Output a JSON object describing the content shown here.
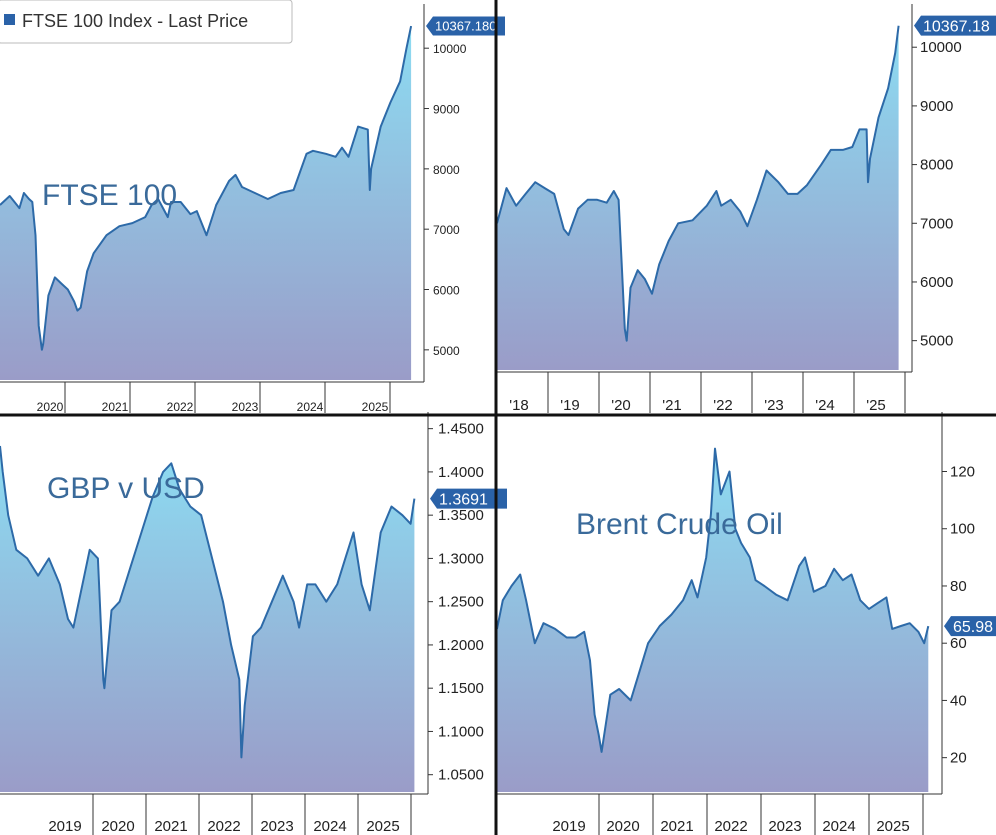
{
  "legend": {
    "label": "FTSE 100 Index - Last Price",
    "swatch_color": "#2a62a8"
  },
  "style": {
    "line_color": "#2d6aa8",
    "fill_top": "#8cdcf2",
    "fill_bottom": "#9a9cc8",
    "badge_color": "#2a62a8",
    "divider_color": "#111111"
  },
  "chart_data": [
    {
      "id": "ftse-5y",
      "type": "area",
      "overlay_title": "FTSE 100",
      "title": "",
      "last_value_label": "10367.180",
      "ylim": [
        4500,
        10600
      ],
      "yticks": [
        5000,
        6000,
        7000,
        8000,
        9000,
        10000
      ],
      "ytick_labels": [
        "5000",
        "6000",
        "7000",
        "8000",
        "9000",
        "10000"
      ],
      "xlim": [
        2019.55,
        2025.95
      ],
      "xtick_labels": [
        "2020",
        "2021",
        "2022",
        "2023",
        "2024",
        "2025"
      ],
      "series": [
        {
          "x": [
            2019.55,
            2019.7,
            2019.85,
            2019.92,
            2020.0,
            2020.05,
            2020.1,
            2020.15,
            2020.2,
            2020.22,
            2020.3,
            2020.4,
            2020.5,
            2020.6,
            2020.7,
            2020.75,
            2020.8,
            2020.9,
            2021.0,
            2021.2,
            2021.4,
            2021.6,
            2021.8,
            2021.9,
            2022.0,
            2022.15,
            2022.2,
            2022.35,
            2022.5,
            2022.6,
            2022.75,
            2022.9,
            2023.1,
            2023.2,
            2023.3,
            2023.5,
            2023.7,
            2023.8,
            2023.9,
            2024.1,
            2024.3,
            2024.4,
            2024.6,
            2024.75,
            2024.85,
            2024.95,
            2025.1,
            2025.25,
            2025.28,
            2025.3,
            2025.45,
            2025.6,
            2025.75,
            2025.85,
            2025.92
          ],
          "y": [
            7400,
            7550,
            7350,
            7600,
            7500,
            7450,
            6900,
            5400,
            5000,
            5100,
            5900,
            6200,
            6100,
            6000,
            5800,
            5650,
            5700,
            6300,
            6600,
            6900,
            7050,
            7100,
            7200,
            7400,
            7500,
            7200,
            7450,
            7450,
            7250,
            7300,
            6900,
            7400,
            7800,
            7900,
            7700,
            7600,
            7500,
            7550,
            7600,
            7650,
            8250,
            8300,
            8250,
            8200,
            8350,
            8200,
            8700,
            8650,
            7650,
            8000,
            8700,
            9100,
            9450,
            10000,
            10367
          ]
        }
      ]
    },
    {
      "id": "ftse-8y",
      "type": "area",
      "title": "",
      "last_value_label": "10367.18",
      "ylim": [
        4500,
        10600
      ],
      "yticks": [
        5000,
        6000,
        7000,
        8000,
        9000,
        10000
      ],
      "ytick_labels": [
        "5000",
        "6000",
        "7000",
        "8000",
        "9000",
        "10000"
      ],
      "xlim": [
        2017.5,
        2025.95
      ],
      "xtick_labels": [
        "'18",
        "'19",
        "'20",
        "'21",
        "'22",
        "'23",
        "'24",
        "'25"
      ],
      "series": [
        {
          "x": [
            2017.5,
            2017.7,
            2017.9,
            2018.1,
            2018.3,
            2018.5,
            2018.7,
            2018.9,
            2019.0,
            2019.2,
            2019.4,
            2019.6,
            2019.8,
            2019.95,
            2020.05,
            2020.12,
            2020.18,
            2020.22,
            2020.3,
            2020.45,
            2020.6,
            2020.75,
            2020.9,
            2021.1,
            2021.3,
            2021.6,
            2021.9,
            2022.1,
            2022.2,
            2022.4,
            2022.6,
            2022.75,
            2022.95,
            2023.15,
            2023.4,
            2023.6,
            2023.8,
            2024.0,
            2024.3,
            2024.5,
            2024.75,
            2024.95,
            2025.1,
            2025.25,
            2025.28,
            2025.32,
            2025.5,
            2025.7,
            2025.85,
            2025.92
          ],
          "y": [
            7000,
            7600,
            7300,
            7500,
            7700,
            7600,
            7500,
            6900,
            6800,
            7250,
            7400,
            7400,
            7350,
            7550,
            7400,
            6200,
            5200,
            5000,
            5900,
            6200,
            6050,
            5800,
            6300,
            6700,
            7000,
            7050,
            7300,
            7550,
            7300,
            7400,
            7200,
            6950,
            7400,
            7900,
            7700,
            7500,
            7500,
            7650,
            8000,
            8250,
            8250,
            8300,
            8600,
            8600,
            7700,
            8100,
            8800,
            9300,
            9900,
            10367
          ]
        }
      ]
    },
    {
      "id": "gbpusd",
      "type": "area",
      "overlay_title": "GBP v USD",
      "title": "",
      "last_value_label": "1.3691",
      "ylim": [
        1.03,
        1.46
      ],
      "yticks": [
        1.05,
        1.1,
        1.15,
        1.2,
        1.25,
        1.3,
        1.35,
        1.4,
        1.45
      ],
      "ytick_labels": [
        "1.0500",
        "1.1000",
        "1.1500",
        "1.2000",
        "1.2500",
        "1.3000",
        "1.3500",
        "1.4000",
        "1.4500"
      ],
      "xlim": [
        2018.3,
        2025.95
      ],
      "xtick_labels": [
        "2019",
        "2020",
        "2021",
        "2022",
        "2023",
        "2024",
        "2025"
      ],
      "series": [
        {
          "x": [
            2018.3,
            2018.35,
            2018.45,
            2018.6,
            2018.8,
            2019.0,
            2019.2,
            2019.4,
            2019.55,
            2019.65,
            2019.85,
            2019.95,
            2020.1,
            2020.2,
            2020.22,
            2020.35,
            2020.5,
            2020.7,
            2020.9,
            2021.1,
            2021.3,
            2021.45,
            2021.6,
            2021.8,
            2022.0,
            2022.2,
            2022.4,
            2022.55,
            2022.7,
            2022.74,
            2022.8,
            2022.95,
            2023.1,
            2023.3,
            2023.5,
            2023.7,
            2023.8,
            2023.95,
            2024.1,
            2024.3,
            2024.5,
            2024.65,
            2024.8,
            2024.95,
            2025.1,
            2025.3,
            2025.5,
            2025.7,
            2025.85,
            2025.92
          ],
          "y": [
            1.43,
            1.4,
            1.35,
            1.31,
            1.3,
            1.28,
            1.3,
            1.27,
            1.23,
            1.22,
            1.28,
            1.31,
            1.3,
            1.16,
            1.15,
            1.24,
            1.25,
            1.29,
            1.33,
            1.37,
            1.4,
            1.41,
            1.38,
            1.36,
            1.35,
            1.3,
            1.25,
            1.2,
            1.16,
            1.07,
            1.13,
            1.21,
            1.22,
            1.25,
            1.28,
            1.25,
            1.22,
            1.27,
            1.27,
            1.25,
            1.27,
            1.3,
            1.33,
            1.27,
            1.24,
            1.33,
            1.36,
            1.35,
            1.34,
            1.3691
          ]
        }
      ]
    },
    {
      "id": "brent",
      "type": "area",
      "overlay_title": "Brent Crude Oil",
      "title": "",
      "last_value_label": "65.98",
      "ylim": [
        8,
        138
      ],
      "yticks": [
        20,
        40,
        60,
        80,
        100,
        120
      ],
      "ytick_labels": [
        "20",
        "40",
        "60",
        "80",
        "100",
        "120"
      ],
      "xlim": [
        2018.5,
        2025.95
      ],
      "xtick_labels": [
        "2019",
        "2020",
        "2021",
        "2022",
        "2023",
        "2024",
        "2025"
      ],
      "series": [
        {
          "x": [
            2018.5,
            2018.6,
            2018.75,
            2018.9,
            2019.0,
            2019.15,
            2019.3,
            2019.5,
            2019.7,
            2019.85,
            2020.0,
            2020.1,
            2020.18,
            2020.25,
            2020.3,
            2020.45,
            2020.6,
            2020.8,
            2020.95,
            2021.1,
            2021.3,
            2021.5,
            2021.7,
            2021.85,
            2021.95,
            2022.1,
            2022.18,
            2022.25,
            2022.35,
            2022.5,
            2022.6,
            2022.7,
            2022.85,
            2022.95,
            2023.1,
            2023.3,
            2023.5,
            2023.7,
            2023.8,
            2023.95,
            2024.15,
            2024.3,
            2024.45,
            2024.6,
            2024.75,
            2024.9,
            2025.05,
            2025.2,
            2025.3,
            2025.45,
            2025.6,
            2025.75,
            2025.85,
            2025.92
          ],
          "y": [
            65,
            75,
            80,
            84,
            75,
            60,
            67,
            65,
            62,
            62,
            64,
            54,
            35,
            28,
            22,
            42,
            44,
            40,
            50,
            60,
            66,
            70,
            75,
            82,
            76,
            90,
            105,
            128,
            112,
            120,
            100,
            95,
            90,
            82,
            80,
            77,
            75,
            87,
            90,
            78,
            80,
            86,
            82,
            84,
            75,
            72,
            74,
            76,
            65,
            66,
            67,
            64,
            60,
            65.98
          ]
        }
      ]
    }
  ]
}
